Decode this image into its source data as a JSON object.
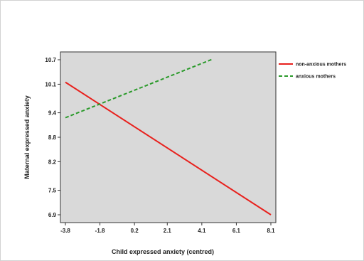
{
  "chart_data": {
    "type": "line",
    "title": "",
    "xlabel": "Child expressed anxiety (centred)",
    "ylabel": "Maternal expressed anxiety",
    "x_ticks": [
      "-3.8",
      "-1.8",
      "0.2",
      "2.1",
      "4.1",
      "6.1",
      "8.1"
    ],
    "y_ticks": [
      "6.9",
      "7.5",
      "8.2",
      "8.8",
      "9.4",
      "10.1",
      "10.7"
    ],
    "xlim": [
      -3.8,
      8.1
    ],
    "ylim": [
      6.9,
      10.7
    ],
    "grid": false,
    "legend_position": "right",
    "series": [
      {
        "name": "non-anxious mothers",
        "color": "#e8211d",
        "style": "solid",
        "x": [
          -3.8,
          8.1
        ],
        "y": [
          10.15,
          6.9
        ]
      },
      {
        "name": "anxious mothers",
        "color": "#2a9a2a",
        "style": "dashed",
        "x": [
          -3.8,
          4.7
        ],
        "y": [
          9.28,
          10.71
        ]
      }
    ]
  }
}
